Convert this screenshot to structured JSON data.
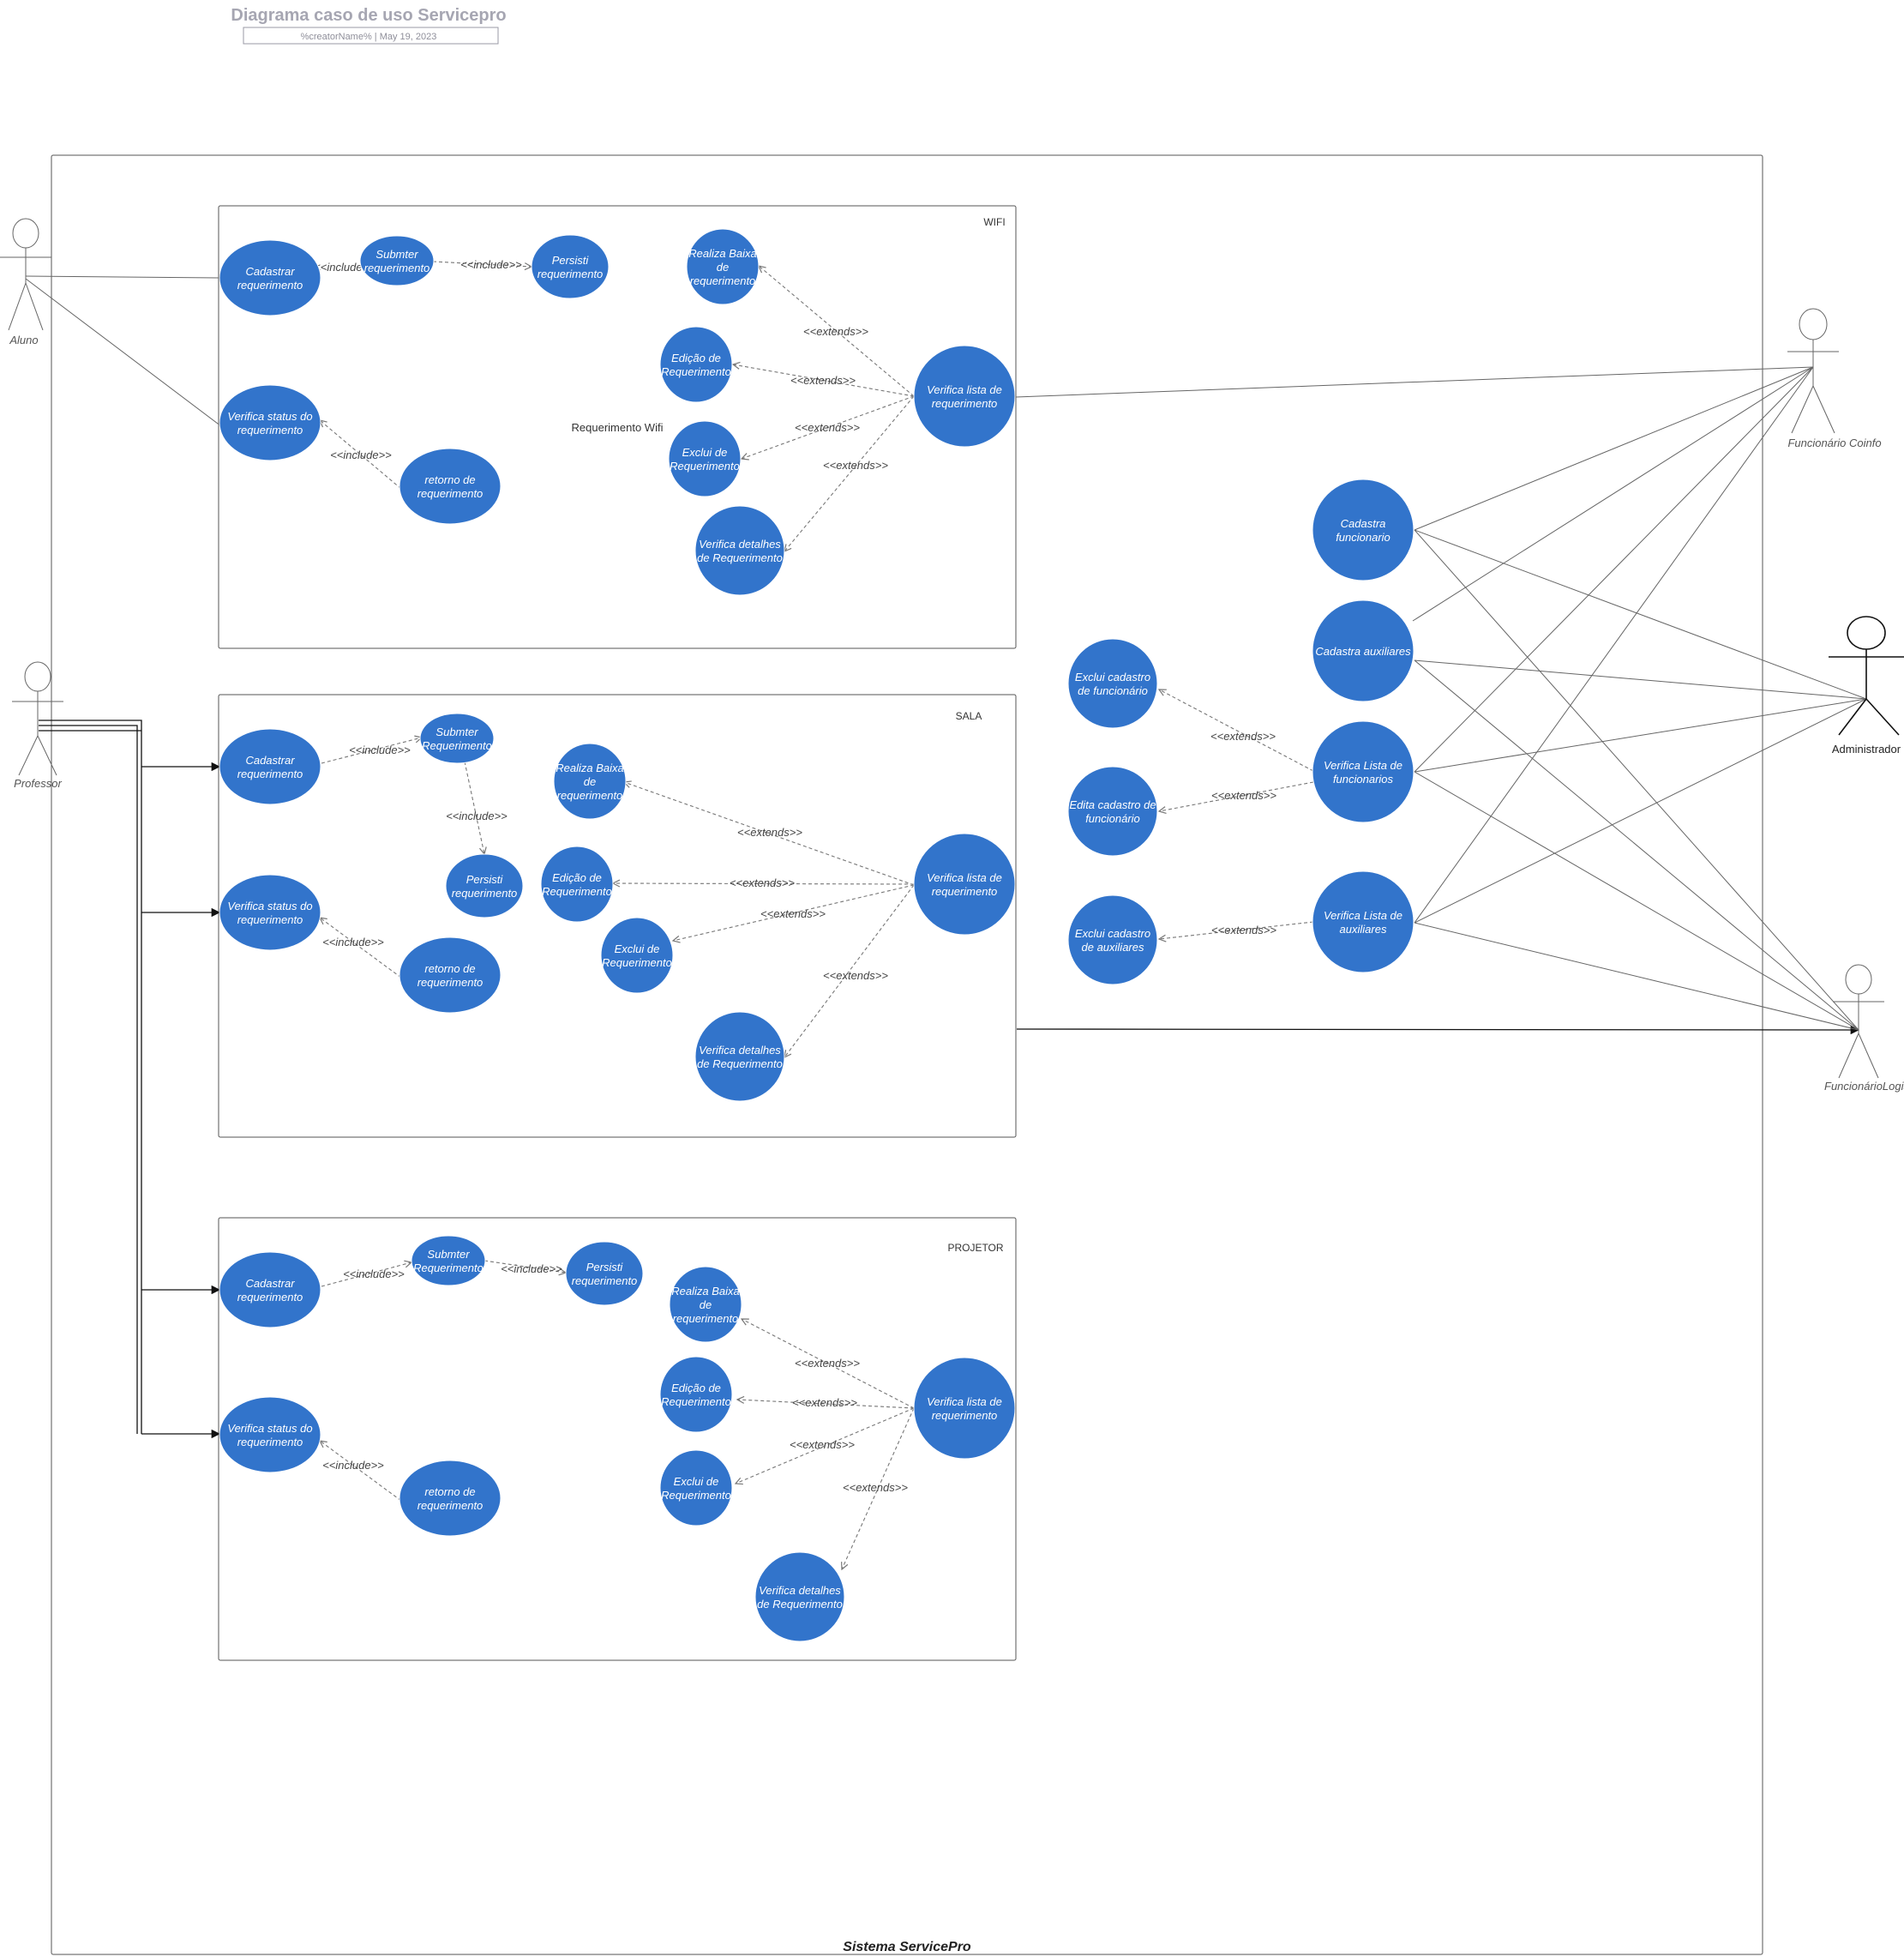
{
  "header": {
    "title": "Diagrama caso de uso Servicepro",
    "subtitle": "%creatorName% | May 19, 2023"
  },
  "system": {
    "name": "Sistema ServicePro"
  },
  "actors": {
    "aluno": "Aluno",
    "professor": "Professor",
    "coinfo": "Funcionário Coinfo",
    "admin": "Administrador",
    "log": "FuncionárioLogistica"
  },
  "packages": {
    "wifi": {
      "name": "WIFI",
      "caption": "Requerimento Wifi",
      "cadastrar": [
        "Cadastrar",
        "requerimento"
      ],
      "submeter": [
        "Submter",
        "requerimento"
      ],
      "persistir": [
        "Persisti",
        "requerimento"
      ],
      "verifica_status": [
        "Verifica status do",
        "requerimento"
      ],
      "retorno": [
        "retorno de",
        "requerimento"
      ],
      "baixa": [
        "Realiza Baixa",
        "de",
        "requerimento"
      ],
      "edicao": [
        "Edição de",
        "Requerimento"
      ],
      "exclui": [
        "Exclui de",
        "Requerimento"
      ],
      "detalhes": [
        "Verifica detalhes",
        "de Requerimento"
      ],
      "lista": [
        "Verifica lista de",
        "requerimento"
      ],
      "rel": {
        "inc1": "<<include>>",
        "inc2": "<<include>>",
        "inc3": "<<include>>",
        "ext1": "<<extends>>",
        "ext2": "<<extends>>",
        "ext3": "<<extends>>",
        "ext4": "<<extends>>"
      }
    },
    "sala": {
      "name": "SALA",
      "cadastrar": [
        "Cadastrar",
        "requerimento"
      ],
      "submeter": [
        "Submter",
        "Requerimento"
      ],
      "persistir": [
        "Persisti",
        "requerimento"
      ],
      "verifica_status": [
        "Verifica status do",
        "requerimento"
      ],
      "retorno": [
        "retorno de",
        "requerimento"
      ],
      "baixa": [
        "Realiza Baixa",
        "de",
        "requerimento"
      ],
      "edicao": [
        "Edição de",
        "Requerimento"
      ],
      "exclui": [
        "Exclui de",
        "Requerimento"
      ],
      "detalhes": [
        "Verifica detalhes",
        "de Requerimento"
      ],
      "lista": [
        "Verifica lista de",
        "requerimento"
      ],
      "rel": {
        "inc1": "<<include>>",
        "inc2": "<<include>>",
        "inc3": "<<include>>",
        "ext1": "<<extends>>",
        "ext2": "<<extends>>",
        "ext3": "<<extends>>",
        "ext4": "<<extends>>"
      }
    },
    "projetor": {
      "name": "PROJETOR",
      "cadastrar": [
        "Cadastrar",
        "requerimento"
      ],
      "submeter": [
        "Submter",
        "Requerimento"
      ],
      "persistir": [
        "Persisti",
        "requerimento"
      ],
      "verifica_status": [
        "Verifica status do",
        "requerimento"
      ],
      "retorno": [
        "retorno de",
        "requerimento"
      ],
      "baixa": [
        "Realiza Baixa",
        "de",
        "requerimento"
      ],
      "edicao": [
        "Edição de",
        "Requerimento"
      ],
      "exclui": [
        "Exclui de",
        "Requerimento"
      ],
      "detalhes": [
        "Verifica detalhes",
        "de Requerimento"
      ],
      "lista": [
        "Verifica lista de",
        "requerimento"
      ],
      "rel": {
        "inc1": "<<include>>",
        "inc2": "<<include>>",
        "inc3": "<<include>>",
        "ext1": "<<extends>>",
        "ext2": "<<extends>>",
        "ext3": "<<extends>>",
        "ext4": "<<extends>>"
      }
    }
  },
  "admin_cases": {
    "cadastra_func": [
      "Cadastra",
      "funcionario"
    ],
    "cadastra_aux": [
      "Cadastra auxiliares"
    ],
    "lista_func": [
      "Verifica Lista de",
      "funcionarios"
    ],
    "lista_aux": [
      "Verifica Lista de",
      "auxiliares"
    ],
    "exclui_func": [
      "Exclui cadastro",
      "de funcionário"
    ],
    "edita_func": [
      "Edita cadastro de",
      "funcionário"
    ],
    "exclui_aux": [
      "Exclui cadastro",
      "de auxiliares"
    ],
    "rel": {
      "ext1": "<<extends>>",
      "ext2": "<<extends>>",
      "ext3": "<<extends>>"
    }
  },
  "colors": {
    "usecase_fill": "#3274cb",
    "title": "#a6a6b2",
    "line": "#666666"
  }
}
